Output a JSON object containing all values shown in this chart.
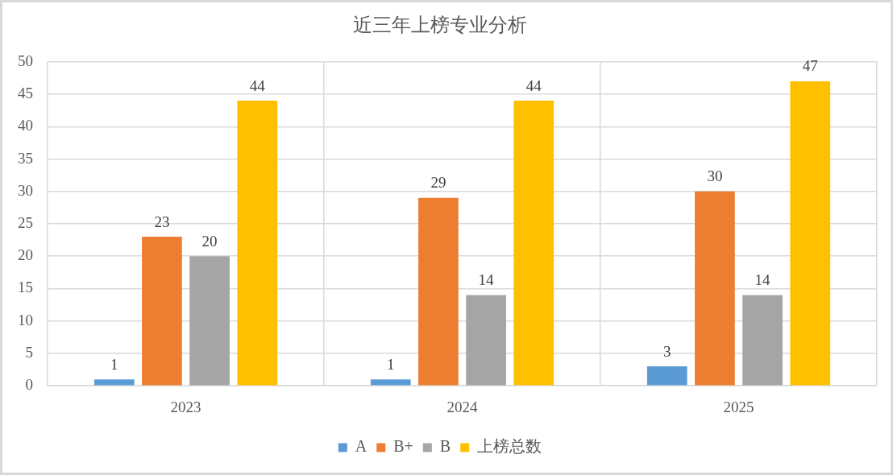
{
  "chart_data": {
    "type": "bar",
    "title": "近三年上榜专业分析",
    "categories": [
      "2023",
      "2024",
      "2025"
    ],
    "series": [
      {
        "name": "A",
        "color": "#5b9bd5",
        "values": [
          1,
          1,
          3
        ]
      },
      {
        "name": "B+",
        "color": "#ed7d31",
        "values": [
          23,
          29,
          30
        ]
      },
      {
        "name": "B",
        "color": "#a5a5a5",
        "values": [
          20,
          14,
          14
        ]
      },
      {
        "name": "上榜总数",
        "color": "#ffc000",
        "values": [
          44,
          44,
          47
        ]
      }
    ],
    "ylim": [
      0,
      50
    ],
    "yticks": [
      0,
      5,
      10,
      15,
      20,
      25,
      30,
      35,
      40,
      45,
      50
    ],
    "grid": true,
    "legend": "bottom",
    "data_labels": true
  }
}
